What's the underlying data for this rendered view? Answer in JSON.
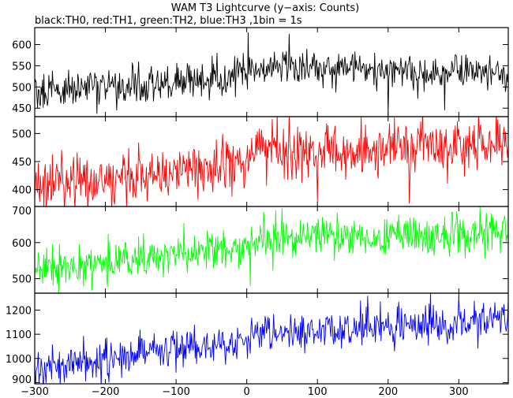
{
  "title": "WAM T3 Lightcurve (y−axis: Counts)",
  "subtitle": "black:TH0, red:TH1, green:TH2, blue:TH3 ,1bin = 1s",
  "colors": {
    "TH0": "#000000",
    "TH1": "#ff0000",
    "TH2": "#00ff00",
    "TH3": "#0000ff"
  },
  "chart_data": {
    "type": "line",
    "title": "WAM T3 Lightcurve (y−axis: Counts)",
    "subtitle": "black:TH0, red:TH1, green:TH2, blue:TH3 ,1bin = 1s",
    "xlim": [
      -300,
      370
    ],
    "x_ticks": [
      -300,
      -200,
      -100,
      0,
      100,
      200,
      300
    ],
    "bin_width_s": 1,
    "grid": false,
    "panels": [
      {
        "series": "TH0",
        "color": "#000000",
        "ylim": [
          430,
          640
        ],
        "y_ticks": [
          450,
          500,
          550,
          600
        ],
        "noise": 22,
        "trend": [
          [
            -300,
            490
          ],
          [
            -150,
            505
          ],
          [
            0,
            525
          ],
          [
            1,
            545
          ],
          [
            150,
            540
          ],
          [
            250,
            532
          ],
          [
            370,
            535
          ]
        ],
        "spikes": [
          [
            -5,
            580
          ],
          [
            60,
            625
          ],
          [
            200,
            432
          ],
          [
            280,
            445
          ]
        ]
      },
      {
        "series": "TH1",
        "color": "#ff0000",
        "ylim": [
          370,
          530
        ],
        "y_ticks": [
          400,
          450,
          500
        ],
        "noise": 24,
        "trend": [
          [
            -300,
            405
          ],
          [
            -150,
            425
          ],
          [
            0,
            445
          ],
          [
            1,
            462
          ],
          [
            150,
            470
          ],
          [
            250,
            478
          ],
          [
            370,
            490
          ]
        ],
        "spikes": [
          [
            -285,
            445
          ],
          [
            100,
            378
          ],
          [
            230,
            375
          ],
          [
            355,
            525
          ]
        ]
      },
      {
        "series": "TH2",
        "color": "#00ff00",
        "ylim": [
          460,
          700
        ],
        "y_ticks": [
          500,
          600,
          700
        ],
        "noise": 28,
        "trend": [
          [
            -300,
            525
          ],
          [
            -150,
            555
          ],
          [
            0,
            585
          ],
          [
            1,
            600
          ],
          [
            150,
            620
          ],
          [
            250,
            622
          ],
          [
            370,
            630
          ]
        ],
        "spikes": [
          [
            5,
            480
          ],
          [
            50,
            695
          ],
          [
            330,
            700
          ]
        ]
      },
      {
        "series": "TH3",
        "color": "#0000ff",
        "ylim": [
          895,
          1270
        ],
        "y_ticks": [
          900,
          1000,
          1100,
          1200
        ],
        "noise": 38,
        "trend": [
          [
            -300,
            960
          ],
          [
            -150,
            1020
          ],
          [
            0,
            1075
          ],
          [
            1,
            1090
          ],
          [
            150,
            1120
          ],
          [
            250,
            1135
          ],
          [
            370,
            1160
          ]
        ],
        "spikes": [
          [
            300,
            1255
          ],
          [
            370,
            1245
          ],
          [
            5,
            1020
          ]
        ]
      }
    ]
  }
}
